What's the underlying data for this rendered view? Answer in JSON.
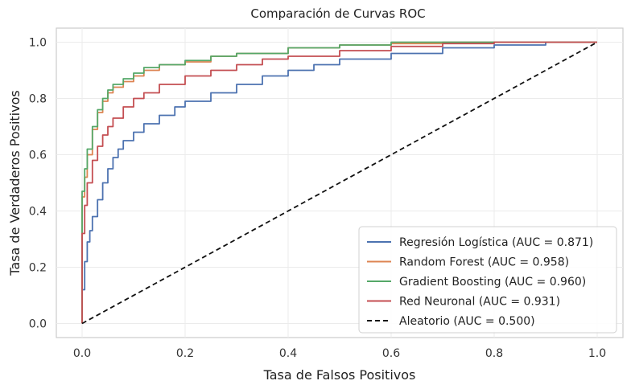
{
  "chart_data": {
    "type": "line",
    "title": "Comparación de Curvas ROC",
    "xlabel": "Tasa de Falsos Positivos",
    "ylabel": "Tasa de Verdaderos Positivos",
    "xlim": [
      -0.05,
      1.05
    ],
    "ylim": [
      -0.05,
      1.05
    ],
    "xticks": [
      0.0,
      0.2,
      0.4,
      0.6,
      0.8,
      1.0
    ],
    "yticks": [
      0.0,
      0.2,
      0.4,
      0.6,
      0.8,
      1.0
    ],
    "xtick_labels": [
      "0.0",
      "0.2",
      "0.4",
      "0.6",
      "0.8",
      "1.0"
    ],
    "ytick_labels": [
      "0.0",
      "0.2",
      "0.4",
      "0.6",
      "0.8",
      "1.0"
    ],
    "grid": true,
    "legend_position": "lower-right",
    "series": [
      {
        "name": "Regresión Logística (AUC = 0.871)",
        "color": "#4c72b0",
        "dash": "solid",
        "x": [
          0.0,
          0.0,
          0.005,
          0.01,
          0.015,
          0.02,
          0.03,
          0.04,
          0.05,
          0.06,
          0.07,
          0.08,
          0.1,
          0.12,
          0.15,
          0.18,
          0.2,
          0.25,
          0.3,
          0.35,
          0.4,
          0.45,
          0.5,
          0.6,
          0.7,
          0.8,
          0.9,
          1.0
        ],
        "y": [
          0.0,
          0.12,
          0.22,
          0.29,
          0.33,
          0.38,
          0.44,
          0.5,
          0.55,
          0.59,
          0.62,
          0.65,
          0.68,
          0.71,
          0.74,
          0.77,
          0.79,
          0.82,
          0.85,
          0.88,
          0.9,
          0.92,
          0.94,
          0.96,
          0.98,
          0.99,
          1.0,
          1.0
        ]
      },
      {
        "name": "Random Forest (AUC = 0.958)",
        "color": "#dd8452",
        "dash": "solid",
        "x": [
          0.0,
          0.0,
          0.005,
          0.01,
          0.02,
          0.03,
          0.04,
          0.05,
          0.06,
          0.08,
          0.1,
          0.12,
          0.15,
          0.2,
          0.25,
          0.3,
          0.4,
          0.5,
          0.6,
          0.7,
          0.8,
          0.9,
          1.0
        ],
        "y": [
          0.0,
          0.45,
          0.52,
          0.6,
          0.69,
          0.75,
          0.79,
          0.82,
          0.84,
          0.86,
          0.88,
          0.9,
          0.92,
          0.93,
          0.95,
          0.96,
          0.98,
          0.99,
          0.995,
          1.0,
          1.0,
          1.0,
          1.0
        ]
      },
      {
        "name": "Gradient Boosting (AUC = 0.960)",
        "color": "#55a868",
        "dash": "solid",
        "x": [
          0.0,
          0.0,
          0.005,
          0.01,
          0.02,
          0.03,
          0.04,
          0.05,
          0.06,
          0.08,
          0.1,
          0.12,
          0.15,
          0.2,
          0.25,
          0.3,
          0.4,
          0.5,
          0.6,
          0.7,
          0.8,
          0.9,
          1.0
        ],
        "y": [
          0.0,
          0.47,
          0.55,
          0.62,
          0.7,
          0.76,
          0.8,
          0.83,
          0.85,
          0.87,
          0.89,
          0.91,
          0.92,
          0.935,
          0.95,
          0.96,
          0.98,
          0.99,
          1.0,
          1.0,
          1.0,
          1.0,
          1.0
        ]
      },
      {
        "name": "Red Neuronal (AUC = 0.931)",
        "color": "#c44e52",
        "dash": "solid",
        "x": [
          0.0,
          0.0,
          0.005,
          0.01,
          0.02,
          0.03,
          0.04,
          0.05,
          0.06,
          0.08,
          0.1,
          0.12,
          0.15,
          0.2,
          0.25,
          0.3,
          0.35,
          0.4,
          0.5,
          0.6,
          0.7,
          0.8,
          0.9,
          1.0
        ],
        "y": [
          0.0,
          0.32,
          0.42,
          0.5,
          0.58,
          0.63,
          0.67,
          0.7,
          0.73,
          0.77,
          0.8,
          0.82,
          0.85,
          0.88,
          0.9,
          0.92,
          0.94,
          0.95,
          0.97,
          0.985,
          0.995,
          1.0,
          1.0,
          1.0
        ]
      },
      {
        "name": "Aleatorio (AUC = 0.500)",
        "color": "#111111",
        "dash": "dashed",
        "x": [
          0.0,
          1.0
        ],
        "y": [
          0.0,
          1.0
        ]
      }
    ]
  }
}
